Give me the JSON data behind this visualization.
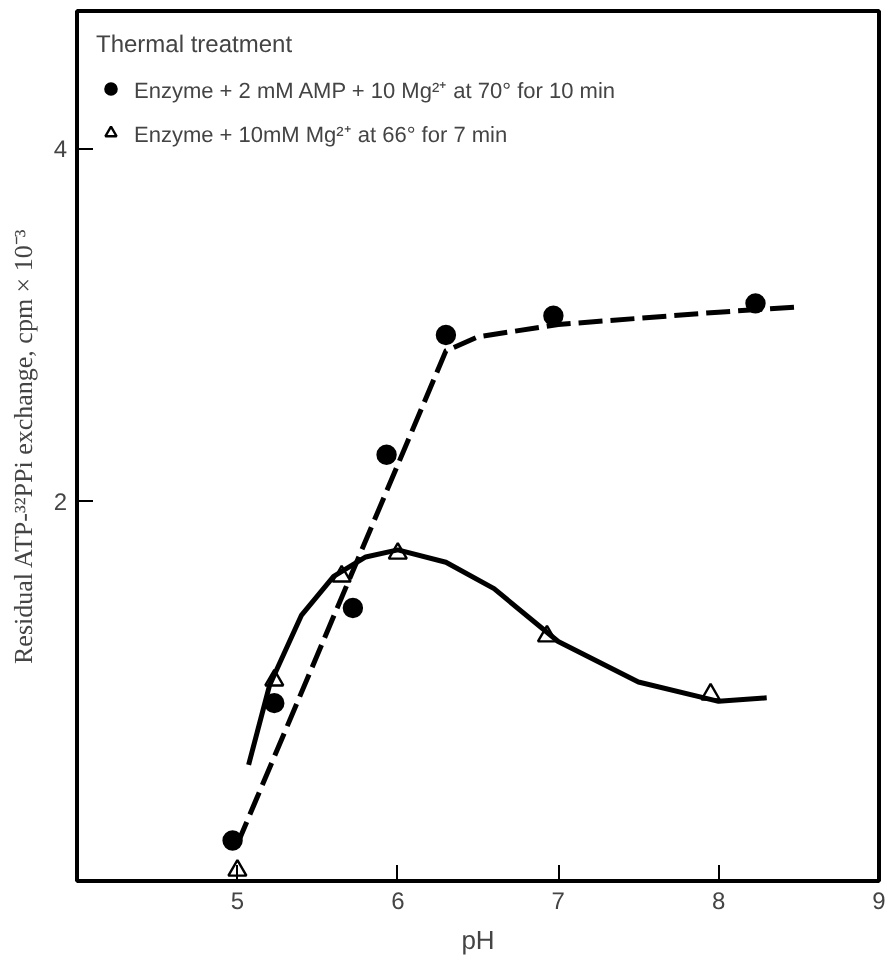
{
  "chart_data": {
    "type": "scatter",
    "xlabel": "pH",
    "ylabel": "Residual ATP-³²PPi exchange, cpm × 10⁻³",
    "legend_title": "Thermal treatment",
    "legend": "top left",
    "grid": false,
    "xlim": [
      4,
      9
    ],
    "ylim": [
      -0.16,
      4.78
    ],
    "xticks": [
      5,
      6,
      7,
      8,
      9
    ],
    "yticks": [
      2,
      4
    ],
    "series": [
      {
        "name": "Enzyme + 2 mM AMP + 10 Mg²⁺ at 70° for 10 min",
        "marker": "circle",
        "color": "#000000",
        "x": [
          4.97,
          5.23,
          5.72,
          5.93,
          6.3,
          6.97,
          8.23
        ],
        "values": [
          0.07,
          0.85,
          1.39,
          2.26,
          2.94,
          3.05,
          3.12
        ]
      },
      {
        "name": "Enzyme + 10mM Mg²⁺ at 66° for 7 min",
        "marker": "triangle",
        "color": "#000000",
        "x": [
          5.0,
          5.23,
          5.65,
          6.0,
          6.93,
          7.95
        ],
        "values": [
          -0.1,
          0.98,
          1.57,
          1.7,
          1.23,
          0.9
        ]
      },
      {
        "type": "line",
        "line_style": "dashed",
        "color": "#000000",
        "x": [
          5.0,
          6.3,
          6.5,
          7.0,
          8.0,
          8.5
        ],
        "values": [
          0.05,
          2.85,
          2.93,
          3.0,
          3.07,
          3.1
        ]
      },
      {
        "type": "line",
        "line_style": "solid",
        "color": "#000000",
        "x": [
          5.07,
          5.2,
          5.4,
          5.6,
          5.8,
          6.0,
          6.3,
          6.6,
          7.0,
          7.5,
          8.0,
          8.3
        ],
        "values": [
          0.5,
          0.95,
          1.35,
          1.57,
          1.68,
          1.72,
          1.65,
          1.5,
          1.2,
          0.97,
          0.86,
          0.88
        ]
      }
    ]
  }
}
